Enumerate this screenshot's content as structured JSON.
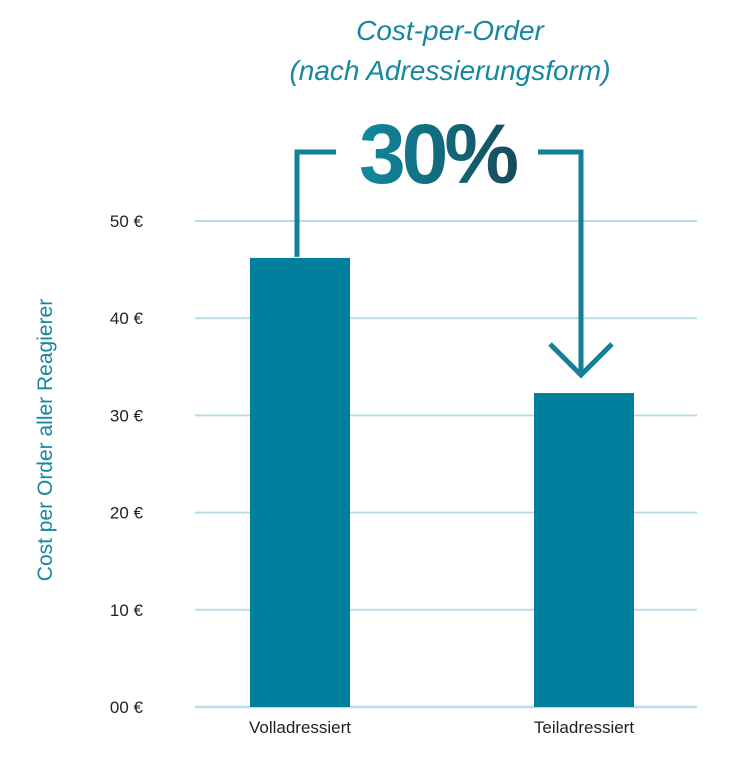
{
  "chart_data": {
    "type": "bar",
    "title": "Cost-per-Order",
    "subtitle": "(nach Adressierungsform)",
    "ylabel": "Cost per Order aller Reagierer",
    "xlabel": "",
    "categories": [
      "Volladressiert",
      "Teiladressiert"
    ],
    "values": [
      46.2,
      32.3
    ],
    "ylim": [
      0,
      50
    ],
    "yticks": [
      0,
      10,
      20,
      30,
      40,
      50
    ],
    "ytick_labels": [
      "00 €",
      "10 €",
      "20 €",
      "30 €",
      "40 €",
      "50 €"
    ],
    "grid": true,
    "annotation": {
      "text": "30%",
      "from": "Volladressiert",
      "to": "Teiladressiert"
    },
    "colors": {
      "bar": "#017f9c",
      "title": "#1588a0",
      "grid": "#b9dce6",
      "arrow": "#137f98",
      "annotation_gradient_start": "#0f8aa1",
      "annotation_gradient_end": "#164b5a"
    }
  }
}
